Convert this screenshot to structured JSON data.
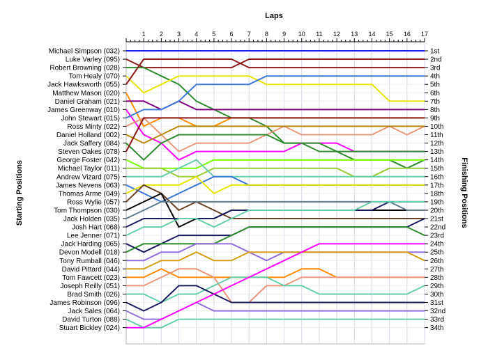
{
  "chart_data": {
    "type": "line",
    "title": "",
    "xlabel": "Laps",
    "ylabel_left": "Starting Positions",
    "ylabel_right": "Finishing Positions",
    "x": [
      1,
      2,
      3,
      4,
      5,
      6,
      7,
      8,
      9,
      10,
      11,
      12,
      13,
      14,
      15,
      16,
      17
    ],
    "grid": true,
    "drivers": [
      "Michael Simpson (032)",
      "Luke Varley (095)",
      "Robert Browning (028)",
      "Tom Healy (070)",
      "Jack Hawksworth (055)",
      "Matthew Mason (020)",
      "Daniel Graham (021)",
      "James Greenway (010)",
      "John Stewart (015)",
      "Ross Minty (022)",
      "Daniel Holland (002)",
      "Jack Saffery (084)",
      "Steven Oakes (078)",
      "George Foster (042)",
      "Michael Taylor (011)",
      "Andrew Vizard (075)",
      "James Nevens (063)",
      "Thomas Arme (049)",
      "Ross Wylie (057)",
      "Tom Thompson (030)",
      "Jack Holden (035)",
      "Josh Hart (068)",
      "Lee Jenner (071)",
      "Jack Harding (065)",
      "Devon Modell (018)",
      "Tony Rumball (046)",
      "David Pittard (044)",
      "Tom Fawcett (023)",
      "Joseph Reilly (051)",
      "Brad Smith (026)",
      "James Robinson (096)",
      "Jack Sales (064)",
      "David Turton (088)",
      "Stuart Bickley (024)"
    ],
    "finishing_positions": [
      "1st",
      "2nd",
      "3rd",
      "4th",
      "5th",
      "6th",
      "7th",
      "8th",
      "9th",
      "10th",
      "11th",
      "12th",
      "13th",
      "14th",
      "15th",
      "16th",
      "17th",
      "18th",
      "19th",
      "20th",
      "21st",
      "22nd",
      "23rd",
      "24th",
      "25th",
      "26th",
      "27th",
      "28th",
      "29th",
      "30th",
      "31st",
      "32nd",
      "33rd",
      "34th"
    ],
    "series": [
      {
        "color": "#1a1aff",
        "positions": [
          1,
          1,
          1,
          1,
          1,
          1,
          1,
          1,
          1,
          1,
          1,
          1,
          1,
          1,
          1,
          1,
          1,
          1
        ]
      },
      {
        "color": "#8b1a1a",
        "positions": [
          2,
          3,
          3,
          3,
          3,
          3,
          3,
          2,
          2,
          2,
          2,
          2,
          2,
          2,
          2,
          2,
          2,
          2
        ]
      },
      {
        "color": "#2e8b2e",
        "positions": [
          3,
          3,
          4,
          5,
          7,
          8,
          9,
          9,
          10,
          12,
          12,
          13,
          13,
          14,
          14,
          14,
          15,
          14
        ]
      },
      {
        "color": "#e6e600",
        "positions": [
          4,
          6,
          5,
          4,
          4,
          4,
          4,
          4,
          5,
          5,
          5,
          5,
          5,
          5,
          5,
          7,
          7,
          7
        ]
      },
      {
        "color": "#8b1a1a",
        "positions": [
          5,
          2,
          2,
          2,
          2,
          2,
          2,
          3,
          3,
          3,
          3,
          3,
          3,
          3,
          3,
          3,
          3,
          3
        ]
      },
      {
        "color": "#ff8c00",
        "positions": [
          6,
          10,
          9,
          9,
          10,
          10,
          9,
          9,
          9,
          9,
          9,
          9,
          9,
          9,
          9,
          9,
          9,
          9
        ]
      },
      {
        "color": "#800080",
        "positions": [
          7,
          7,
          8,
          7,
          8,
          8,
          8,
          8,
          8,
          8,
          8,
          8,
          8,
          8,
          8,
          8,
          8,
          8
        ]
      },
      {
        "color": "#ff00ff",
        "positions": [
          8,
          11,
          12,
          14,
          13,
          13,
          13,
          13,
          13,
          13,
          12,
          12,
          12,
          13,
          13,
          13,
          13,
          13
        ]
      },
      {
        "color": "#3c78d8",
        "positions": [
          9,
          8,
          8,
          7,
          5,
          5,
          5,
          5,
          4,
          4,
          4,
          4,
          4,
          4,
          4,
          4,
          4,
          4
        ]
      },
      {
        "color": "#e9967a",
        "positions": [
          10,
          9,
          11,
          13,
          12,
          12,
          12,
          12,
          11,
          10,
          11,
          11,
          11,
          11,
          11,
          10,
          11,
          10
        ]
      },
      {
        "color": "#b8860b",
        "positions": [
          11,
          12,
          11,
          10,
          10,
          10,
          10,
          10,
          10,
          10,
          10,
          10,
          10,
          10,
          10,
          10,
          10,
          10
        ]
      },
      {
        "color": "#2e8b2e",
        "positions": [
          12,
          14,
          12,
          11,
          11,
          11,
          11,
          11,
          11,
          12,
          12,
          12,
          13,
          13,
          13,
          13,
          13,
          13
        ]
      },
      {
        "color": "#8b1a1a",
        "positions": [
          13,
          9,
          9,
          9,
          9,
          9,
          9,
          9,
          9,
          9,
          9,
          9,
          9,
          9,
          9,
          9,
          9,
          9
        ]
      },
      {
        "color": "#7cfc00",
        "positions": [
          14,
          15,
          15,
          15,
          15,
          14,
          14,
          14,
          14,
          14,
          14,
          14,
          14,
          14,
          14,
          14,
          14,
          14
        ]
      },
      {
        "color": "#99cc33",
        "positions": [
          15,
          15,
          15,
          16,
          16,
          15,
          15,
          15,
          15,
          15,
          15,
          15,
          15,
          16,
          16,
          15,
          15,
          15
        ]
      },
      {
        "color": "#66cdaa",
        "positions": [
          16,
          16,
          16,
          15,
          14,
          16,
          16,
          16,
          16,
          16,
          16,
          16,
          16,
          16,
          16,
          16,
          16,
          16
        ]
      },
      {
        "color": "#3c78d8",
        "positions": [
          17,
          18,
          19,
          18,
          17,
          16,
          16,
          17,
          17,
          17,
          17,
          17,
          17,
          17,
          17,
          17,
          17,
          17
        ]
      },
      {
        "color": "#e6e600",
        "positions": [
          18,
          17,
          17,
          17,
          16,
          18,
          17,
          17,
          17,
          17,
          17,
          17,
          17,
          17,
          17,
          17,
          17,
          17
        ]
      },
      {
        "color": "#6b4226",
        "positions": [
          19,
          17,
          18,
          20,
          19,
          20,
          21,
          21,
          21,
          21,
          21,
          21,
          21,
          21,
          21,
          21,
          21,
          21
        ]
      },
      {
        "color": "#000000",
        "positions": [
          20,
          19,
          18,
          22,
          21,
          21,
          20,
          20,
          20,
          20,
          20,
          20,
          20,
          20,
          20,
          20,
          20,
          20
        ]
      },
      {
        "color": "#5c7a8a",
        "positions": [
          21,
          20,
          19,
          19,
          19,
          19,
          19,
          19,
          19,
          19,
          19,
          19,
          19,
          19,
          19,
          19,
          20,
          20
        ]
      },
      {
        "color": "#1a1a5e",
        "positions": [
          22,
          21,
          21,
          21,
          21,
          21,
          20,
          20,
          20,
          20,
          20,
          20,
          20,
          20,
          20,
          19,
          19,
          19
        ]
      },
      {
        "color": "#66cdaa",
        "positions": [
          23,
          22,
          22,
          21,
          21,
          22,
          21,
          20,
          20,
          20,
          20,
          20,
          20,
          20,
          19,
          19,
          19,
          19
        ]
      },
      {
        "color": "#1a1a5e",
        "positions": [
          24,
          25,
          24,
          23,
          23,
          23,
          23,
          22,
          22,
          22,
          22,
          22,
          22,
          22,
          22,
          22,
          22,
          21
        ]
      },
      {
        "color": "#2e8b2e",
        "positions": [
          25,
          24,
          24,
          24,
          24,
          24,
          23,
          22,
          22,
          22,
          22,
          22,
          22,
          22,
          22,
          22,
          22,
          23
        ]
      },
      {
        "color": "#9370db",
        "positions": [
          26,
          26,
          25,
          25,
          24,
          24,
          24,
          25,
          26,
          25,
          25,
          25,
          25,
          25,
          25,
          25,
          25,
          25
        ]
      },
      {
        "color": "#d4a017",
        "positions": [
          27,
          27,
          26,
          26,
          25,
          26,
          26,
          25,
          25,
          25,
          25,
          25,
          25,
          25,
          25,
          25,
          25,
          26
        ]
      },
      {
        "color": "#ff8c00",
        "positions": [
          28,
          28,
          27,
          28,
          28,
          28,
          28,
          28,
          28,
          28,
          27,
          27,
          28,
          28,
          28,
          28,
          28,
          28
        ]
      },
      {
        "color": "#e9967a",
        "positions": [
          29,
          29,
          28,
          27,
          27,
          28,
          31,
          31,
          29,
          29,
          28,
          28,
          28,
          28,
          28,
          28,
          28,
          28
        ]
      },
      {
        "color": "#66cdaa",
        "positions": [
          30,
          30,
          31,
          30,
          30,
          29,
          28,
          28,
          28,
          29,
          29,
          30,
          30,
          30,
          30,
          30,
          30,
          29
        ]
      },
      {
        "color": "#1a1a5e",
        "positions": [
          31,
          32,
          31,
          29,
          29,
          30,
          31,
          31,
          31,
          31,
          31,
          31,
          31,
          31,
          31,
          31,
          31,
          31
        ]
      },
      {
        "color": "#9370db",
        "positions": [
          32,
          33,
          33,
          32,
          31,
          32,
          32,
          32,
          32,
          32,
          32,
          32,
          32,
          32,
          32,
          32,
          32,
          32
        ]
      },
      {
        "color": "#66cdaa",
        "positions": [
          33,
          34,
          34,
          33,
          33,
          33,
          33,
          33,
          33,
          33,
          33,
          33,
          33,
          33,
          33,
          33,
          33,
          33
        ]
      },
      {
        "color": "#ff00ff",
        "positions": [
          34,
          34,
          33,
          32,
          31,
          30,
          29,
          28,
          27,
          26,
          25,
          24,
          24,
          24,
          24,
          24,
          24,
          24
        ]
      }
    ]
  }
}
